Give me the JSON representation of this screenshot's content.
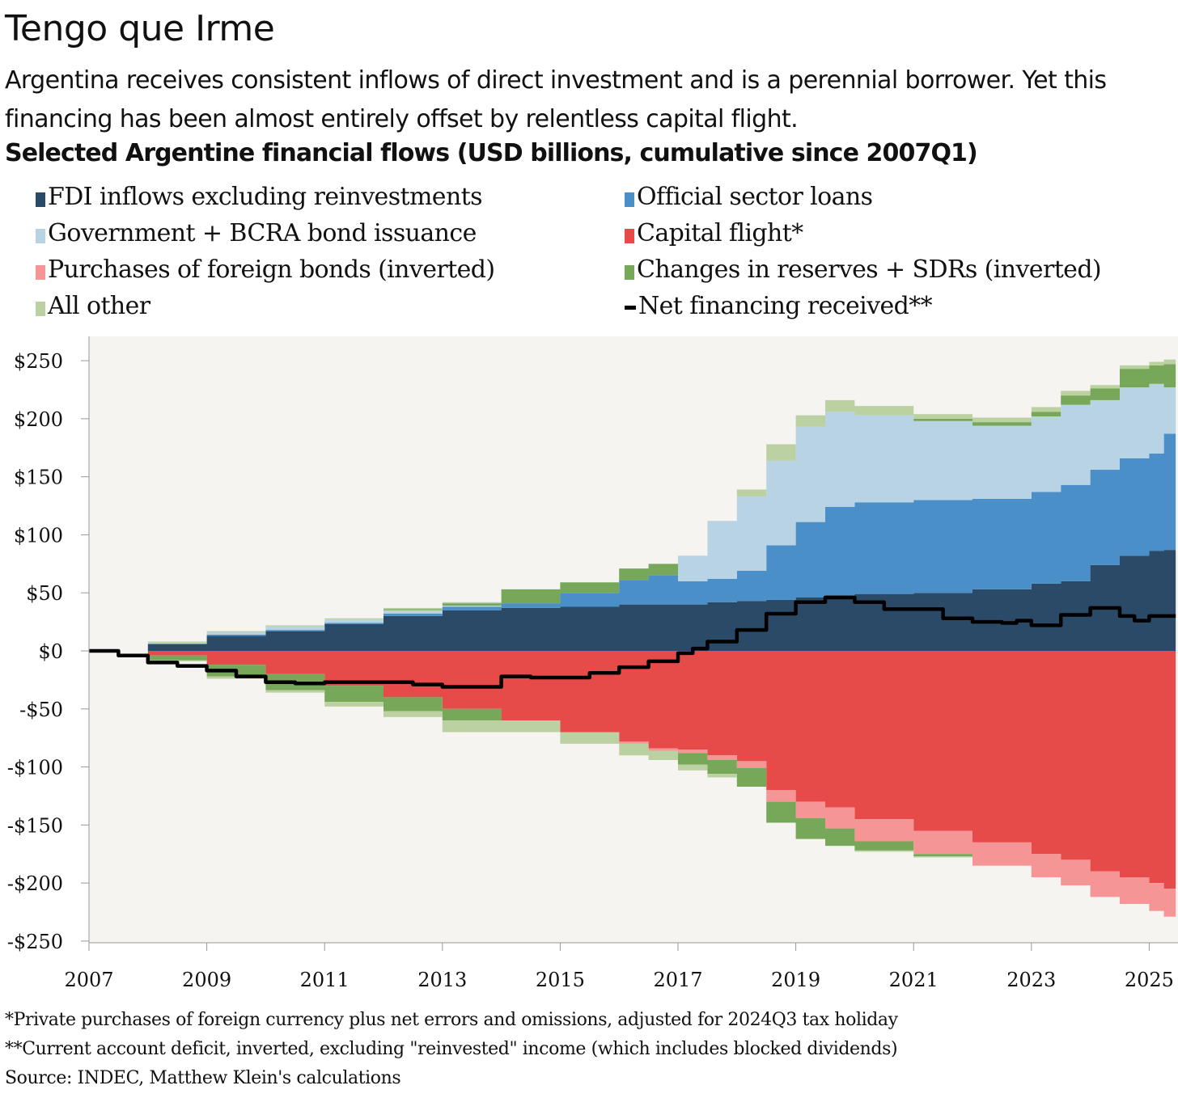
{
  "header": {
    "title": "Tengo que Irme",
    "subtitle": "Argentina receives consistent inflows of direct investment and is a perennial borrower. Yet this financing has been almost entirely offset by relentless capital flight.",
    "chart_title": "Selected Argentine financial flows (USD billions, cumulative since 2007Q1)"
  },
  "legend": [
    {
      "label": "FDI inflows excluding reinvestments",
      "color": "#2b4a68",
      "kind": "box"
    },
    {
      "label": "Official sector loans",
      "color": "#4a8fc7",
      "kind": "box"
    },
    {
      "label": "Government + BCRA bond issuance",
      "color": "#b8d3e3",
      "kind": "box"
    },
    {
      "label": "Capital flight*",
      "color": "#e64b4a",
      "kind": "box"
    },
    {
      "label": "Purchases of foreign bonds (inverted)",
      "color": "#f59595",
      "kind": "box"
    },
    {
      "label": "Changes in reserves + SDRs (inverted)",
      "color": "#77a85a",
      "kind": "box"
    },
    {
      "label": "All other",
      "color": "#bcd1a2",
      "kind": "box"
    },
    {
      "label": "Net financing received**",
      "color": "#000000",
      "kind": "line"
    }
  ],
  "notes": {
    "note1": "*Private purchases of foreign currency plus net errors and omissions, adjusted for 2024Q3 tax holiday",
    "note2": "**Current account deficit, inverted, excluding \"reinvested\" income (which includes blocked dividends)",
    "source": "Source: INDEC, Matthew Klein's calculations"
  },
  "chart_data": {
    "type": "area",
    "stacked": true,
    "step": true,
    "x_label": "",
    "y_label": "",
    "x_ticks": [
      "2007",
      "2009",
      "2011",
      "2013",
      "2015",
      "2017",
      "2019",
      "2021",
      "2023",
      "2025"
    ],
    "y_ticks": [
      "$250",
      "$200",
      "$150",
      "$100",
      "$50",
      "$0",
      "-$50",
      "-$100",
      "-$150",
      "-$200",
      "-$250"
    ],
    "ylim": [
      -250,
      265
    ],
    "xlim": [
      2007.0,
      2025.45
    ],
    "x": [
      2007.0,
      2008.0,
      2009.0,
      2010.0,
      2011.0,
      2012.0,
      2013.0,
      2014.0,
      2015.0,
      2016.0,
      2016.5,
      2017.0,
      2017.5,
      2018.0,
      2018.5,
      2019.0,
      2019.5,
      2020.0,
      2021.0,
      2022.0,
      2023.0,
      2023.5,
      2024.0,
      2024.5,
      2025.0,
      2025.25,
      2025.45
    ],
    "series": [
      {
        "name": "FDI inflows excluding reinvestments",
        "color": "#2b4a68",
        "side": "positive",
        "values": [
          0,
          6,
          13,
          17,
          23,
          30,
          35,
          37,
          38,
          40,
          40,
          40,
          42,
          43,
          44,
          46,
          48,
          49,
          50,
          53,
          58,
          60,
          74,
          82,
          86,
          87,
          87
        ]
      },
      {
        "name": "Official sector loans",
        "color": "#4a8fc7",
        "side": "positive",
        "values": [
          0,
          0,
          1,
          1,
          1,
          2,
          3,
          4,
          12,
          21,
          25,
          20,
          20,
          26,
          47,
          65,
          76,
          79,
          80,
          78,
          79,
          83,
          82,
          84,
          84,
          100,
          100
        ]
      },
      {
        "name": "Government + BCRA bond issuance",
        "color": "#b8d3e3",
        "side": "positive",
        "values": [
          0,
          1,
          2,
          3,
          3,
          3,
          1,
          0,
          0,
          0,
          0,
          22,
          50,
          64,
          73,
          82,
          82,
          75,
          68,
          63,
          65,
          69,
          60,
          61,
          60,
          40,
          40
        ]
      },
      {
        "name": "Changes in reserves + SDRs (inverted)",
        "color": "#77a85a",
        "side": "positive",
        "values": [
          0,
          0,
          0,
          0,
          0,
          1,
          2,
          12,
          9,
          10,
          10,
          0,
          0,
          0,
          0,
          0,
          0,
          0,
          2,
          3,
          4,
          8,
          10,
          16,
          16,
          20,
          10
        ]
      },
      {
        "name": "All other",
        "color": "#bcd1a2",
        "side": "positive",
        "values": [
          0,
          1,
          1,
          1,
          1,
          1,
          1,
          0,
          0,
          0,
          0,
          0,
          0,
          6,
          14,
          10,
          10,
          8,
          4,
          4,
          4,
          4,
          3,
          3,
          3,
          4,
          6
        ]
      },
      {
        "name": "Capital flight*",
        "color": "#e64b4a",
        "side": "negative",
        "values": [
          0,
          -4,
          -12,
          -20,
          -30,
          -40,
          -50,
          -60,
          -70,
          -78,
          -84,
          -85,
          -90,
          -95,
          -120,
          -130,
          -135,
          -145,
          -155,
          -165,
          -175,
          -180,
          -190,
          -195,
          -200,
          -205,
          -212
        ]
      },
      {
        "name": "Purchases of foreign bonds (inverted)",
        "color": "#f59595",
        "side": "negative",
        "values": [
          0,
          0,
          0,
          0,
          0,
          0,
          0,
          0,
          0,
          -2,
          -2,
          -3,
          -4,
          -6,
          -10,
          -14,
          -18,
          -19,
          -20,
          -20,
          -20,
          -22,
          -22,
          -23,
          -24,
          -24,
          -22
        ]
      },
      {
        "name": "Changes in reserves + SDRs (inverted)",
        "color": "#77a85a",
        "side": "negative",
        "values": [
          0,
          -4,
          -10,
          -14,
          -14,
          -12,
          -10,
          0,
          0,
          0,
          0,
          -10,
          -12,
          -16,
          -18,
          -18,
          -15,
          -8,
          -2,
          0,
          0,
          0,
          0,
          0,
          0,
          0,
          0
        ]
      },
      {
        "name": "All other",
        "color": "#bcd1a2",
        "side": "negative",
        "values": [
          0,
          -1,
          -2,
          -2,
          -4,
          -5,
          -10,
          -10,
          -10,
          -10,
          -8,
          -5,
          -3,
          0,
          0,
          0,
          0,
          -1,
          -1,
          0,
          0,
          0,
          0,
          0,
          0,
          0,
          0
        ]
      }
    ],
    "net_line": {
      "name": "Net financing received**",
      "color": "#000000",
      "points": [
        [
          2007.0,
          0
        ],
        [
          2007.5,
          -4
        ],
        [
          2008.0,
          -10
        ],
        [
          2008.5,
          -13
        ],
        [
          2009.0,
          -17
        ],
        [
          2009.5,
          -22
        ],
        [
          2010.0,
          -27
        ],
        [
          2010.5,
          -28
        ],
        [
          2011.0,
          -27
        ],
        [
          2011.5,
          -27
        ],
        [
          2012.0,
          -27
        ],
        [
          2012.5,
          -29
        ],
        [
          2013.0,
          -31
        ],
        [
          2013.5,
          -31
        ],
        [
          2014.0,
          -22
        ],
        [
          2014.5,
          -23
        ],
        [
          2015.0,
          -23
        ],
        [
          2015.5,
          -19
        ],
        [
          2016.0,
          -14
        ],
        [
          2016.5,
          -9
        ],
        [
          2017.0,
          -2
        ],
        [
          2017.25,
          2
        ],
        [
          2017.5,
          8
        ],
        [
          2018.0,
          18
        ],
        [
          2018.5,
          32
        ],
        [
          2019.0,
          42
        ],
        [
          2019.5,
          46
        ],
        [
          2020.0,
          42
        ],
        [
          2020.5,
          36
        ],
        [
          2021.0,
          36
        ],
        [
          2021.5,
          28
        ],
        [
          2022.0,
          25
        ],
        [
          2022.5,
          24
        ],
        [
          2022.75,
          26
        ],
        [
          2023.0,
          22
        ],
        [
          2023.5,
          31
        ],
        [
          2024.0,
          37
        ],
        [
          2024.5,
          30
        ],
        [
          2024.75,
          26
        ],
        [
          2025.0,
          30
        ],
        [
          2025.45,
          30
        ]
      ]
    }
  }
}
